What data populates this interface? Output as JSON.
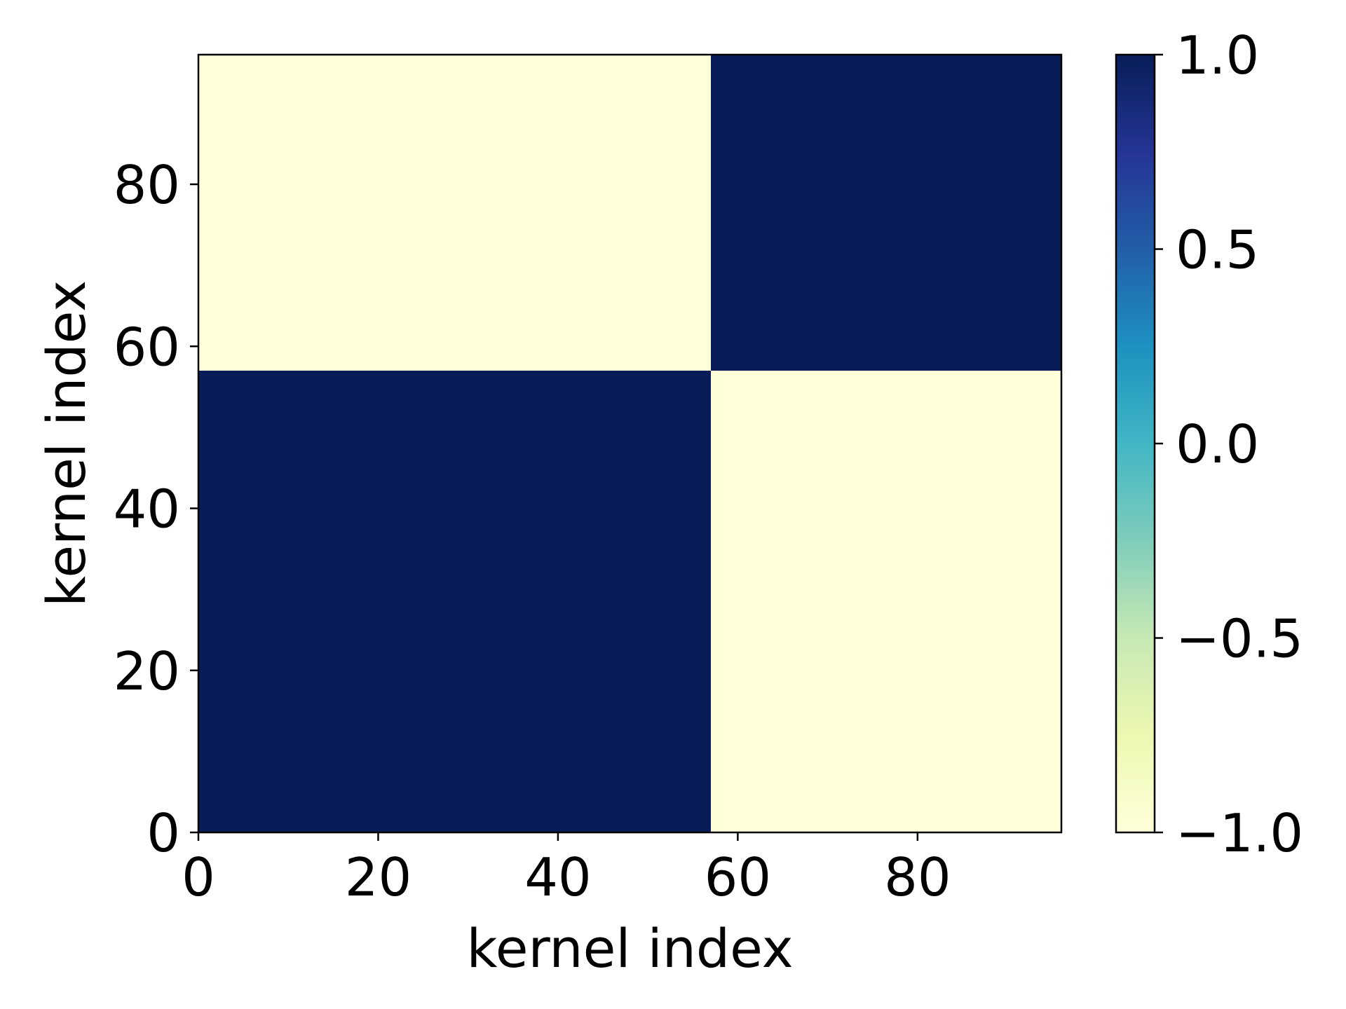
{
  "chart_data": {
    "type": "heatmap",
    "title": "",
    "xlabel": "kernel index",
    "ylabel": "kernel index",
    "xlim": [
      0,
      96
    ],
    "ylim": [
      0,
      96
    ],
    "x_ticks": [
      0,
      20,
      40,
      60,
      80
    ],
    "y_ticks": [
      0,
      20,
      40,
      60,
      80
    ],
    "x_tick_labels": [
      "0",
      "20",
      "40",
      "60",
      "80"
    ],
    "y_tick_labels": [
      "0",
      "20",
      "40",
      "60",
      "80"
    ],
    "blocks": [
      {
        "x": [
          0,
          57
        ],
        "y": [
          0,
          57
        ],
        "value": 1.0
      },
      {
        "x": [
          57,
          96
        ],
        "y": [
          0,
          57
        ],
        "value": -1.0
      },
      {
        "x": [
          0,
          57
        ],
        "y": [
          57,
          96
        ],
        "value": -1.0
      },
      {
        "x": [
          57,
          96
        ],
        "y": [
          57,
          96
        ],
        "value": 1.0
      }
    ],
    "colorbar": {
      "colormap": "YlGnBu",
      "range": [
        -1.0,
        1.0
      ],
      "ticks": [
        1.0,
        0.5,
        0.0,
        -0.5,
        -1.0
      ],
      "tick_labels": [
        "1.0",
        "0.5",
        "0.0",
        "−0.5",
        "−1.0"
      ],
      "colors": [
        "#ffffd9",
        "#edf8b1",
        "#c7e9b4",
        "#7fcdbb",
        "#41b6c4",
        "#1d91c0",
        "#225ea8",
        "#253494",
        "#081d58"
      ]
    },
    "grid": false
  }
}
